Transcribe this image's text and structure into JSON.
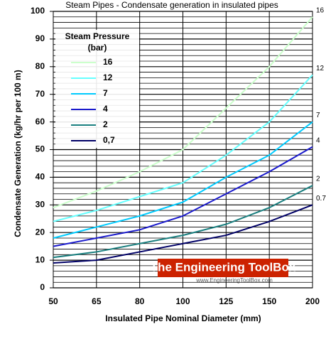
{
  "chart_data": {
    "type": "line",
    "title": "Steam Pipes - Condensate generation in insulated pipes",
    "x_label": "Insulated Pipe Nominal Diameter (mm)",
    "y_label": "Condensate Generation (kg/hr per 100 m)",
    "legend_title": [
      "Steam Pressure",
      "(bar)"
    ],
    "categories": [
      "50",
      "65",
      "80",
      "100",
      "125",
      "150",
      "200"
    ],
    "ylim": [
      0,
      100
    ],
    "yticks": [
      0,
      10,
      20,
      30,
      40,
      50,
      60,
      70,
      80,
      90,
      100
    ],
    "grid": true,
    "legend_position": "upper left",
    "series": [
      {
        "name": "16",
        "end_label": "16",
        "color": "#ccffcc",
        "values": [
          29,
          35,
          42,
          50,
          65,
          80,
          98
        ]
      },
      {
        "name": "12",
        "end_label": "12",
        "color": "#66ffff",
        "values": [
          24,
          28,
          33,
          38,
          48,
          60,
          77
        ]
      },
      {
        "name": "7",
        "end_label": "7",
        "color": "#00ccff",
        "values": [
          18,
          22,
          26,
          31,
          40,
          48,
          60
        ]
      },
      {
        "name": "4",
        "end_label": "4",
        "color": "#1a1acc",
        "values": [
          15,
          18,
          21,
          26,
          34,
          42,
          51
        ]
      },
      {
        "name": "2",
        "end_label": "2",
        "color": "#1a7f7f",
        "values": [
          11,
          13,
          16,
          19,
          23,
          29,
          37
        ]
      },
      {
        "name": "0,7",
        "end_label": "0.7",
        "color": "#000066",
        "values": [
          9,
          10,
          13,
          16,
          19,
          24,
          30
        ]
      }
    ],
    "watermark": {
      "title": "The Engineering ToolBox",
      "url": "www.EngineeringToolBox.com"
    }
  }
}
